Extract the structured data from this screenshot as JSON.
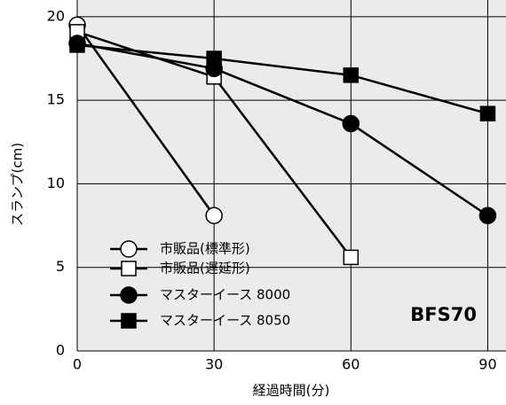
{
  "chart_data": {
    "type": "line",
    "x": [
      0,
      30,
      60,
      90
    ],
    "xlim": [
      0,
      94
    ],
    "xticks": [
      0,
      30,
      60,
      90
    ],
    "ylim": [
      0,
      21
    ],
    "yticks": [
      0,
      5,
      10,
      15,
      20
    ],
    "x_label": "経過時間(分)",
    "y_label": "スランプ(cm)",
    "annotation": "BFS70",
    "grid": true,
    "legend": "lower left",
    "series": [
      {
        "name": "市販品(標準形)",
        "color": "#000000",
        "marker": "circle",
        "filled": false,
        "values": [
          19.5,
          8.1,
          null,
          null
        ]
      },
      {
        "name": "市販品(遅延形)",
        "color": "#000000",
        "marker": "square",
        "filled": false,
        "values": [
          19.1,
          16.4,
          5.6,
          null
        ]
      },
      {
        "name": "マスターイース 8000",
        "color": "#000000",
        "marker": "circle",
        "filled": true,
        "values": [
          18.4,
          16.9,
          13.6,
          8.1
        ]
      },
      {
        "name": "マスターイース 8050",
        "color": "#000000",
        "marker": "square",
        "filled": true,
        "values": [
          18.3,
          17.5,
          16.5,
          14.2
        ]
      }
    ]
  }
}
